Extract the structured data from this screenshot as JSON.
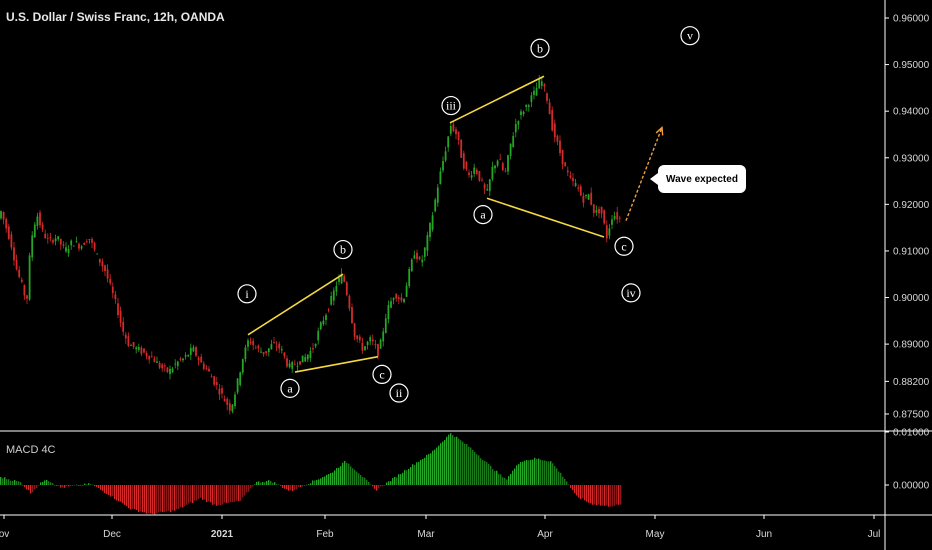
{
  "header": {
    "title": "U.S. Dollar / Swiss Franc, 12h, OANDA"
  },
  "macd": {
    "title": "MACD 4C"
  },
  "callout": {
    "text": "Wave expected"
  },
  "colors": {
    "up": "#26a626",
    "down": "#d42a2a",
    "line": "#f5d742",
    "arrow": "#f0a040",
    "grid": "#ffffff"
  },
  "chart_data": {
    "type": "candlestick",
    "price_axis": {
      "ticks": [
        "0.96000",
        "0.95000",
        "0.94000",
        "0.93000",
        "0.92000",
        "0.91000",
        "0.90000",
        "0.89000",
        "0.88200",
        "0.87500"
      ],
      "range": [
        0.871,
        0.969
      ]
    },
    "macd_axis": {
      "ticks": [
        "0.01000",
        "0.00000"
      ],
      "range": [
        -0.0065,
        0.0115
      ]
    },
    "time_axis": {
      "ticks": [
        "ov",
        "Dec",
        "2021",
        "Feb",
        "Mar",
        "Apr",
        "May",
        "Jun",
        "Jul"
      ]
    },
    "path_points": [
      [
        0,
        0.92
      ],
      [
        6,
        0.916
      ],
      [
        12,
        0.912
      ],
      [
        18,
        0.906
      ],
      [
        24,
        0.902
      ],
      [
        28,
        0.899
      ],
      [
        32,
        0.912
      ],
      [
        38,
        0.918
      ],
      [
        44,
        0.914
      ],
      [
        50,
        0.912
      ],
      [
        58,
        0.913
      ],
      [
        66,
        0.91
      ],
      [
        74,
        0.912
      ],
      [
        82,
        0.911
      ],
      [
        90,
        0.913
      ],
      [
        98,
        0.909
      ],
      [
        106,
        0.906
      ],
      [
        112,
        0.902
      ],
      [
        118,
        0.898
      ],
      [
        124,
        0.893
      ],
      [
        130,
        0.89
      ],
      [
        138,
        0.889
      ],
      [
        146,
        0.888
      ],
      [
        154,
        0.887
      ],
      [
        162,
        0.885
      ],
      [
        170,
        0.884
      ],
      [
        178,
        0.886
      ],
      [
        186,
        0.887
      ],
      [
        194,
        0.889
      ],
      [
        202,
        0.886
      ],
      [
        210,
        0.884
      ],
      [
        218,
        0.881
      ],
      [
        226,
        0.878
      ],
      [
        232,
        0.876
      ],
      [
        238,
        0.881
      ],
      [
        244,
        0.887
      ],
      [
        250,
        0.891
      ],
      [
        258,
        0.889
      ],
      [
        266,
        0.888
      ],
      [
        274,
        0.89
      ],
      [
        282,
        0.889
      ],
      [
        290,
        0.885
      ],
      [
        298,
        0.886
      ],
      [
        306,
        0.887
      ],
      [
        314,
        0.889
      ],
      [
        322,
        0.894
      ],
      [
        330,
        0.898
      ],
      [
        338,
        0.903
      ],
      [
        344,
        0.905
      ],
      [
        350,
        0.899
      ],
      [
        356,
        0.892
      ],
      [
        364,
        0.889
      ],
      [
        372,
        0.891
      ],
      [
        380,
        0.888
      ],
      [
        388,
        0.897
      ],
      [
        396,
        0.901
      ],
      [
        404,
        0.899
      ],
      [
        410,
        0.905
      ],
      [
        416,
        0.91
      ],
      [
        422,
        0.907
      ],
      [
        428,
        0.912
      ],
      [
        434,
        0.918
      ],
      [
        440,
        0.925
      ],
      [
        446,
        0.931
      ],
      [
        452,
        0.937
      ],
      [
        458,
        0.935
      ],
      [
        464,
        0.929
      ],
      [
        470,
        0.926
      ],
      [
        476,
        0.928
      ],
      [
        482,
        0.925
      ],
      [
        488,
        0.922
      ],
      [
        494,
        0.928
      ],
      [
        500,
        0.93
      ],
      [
        506,
        0.926
      ],
      [
        512,
        0.933
      ],
      [
        518,
        0.938
      ],
      [
        524,
        0.94
      ],
      [
        530,
        0.942
      ],
      [
        536,
        0.944
      ],
      [
        542,
        0.947
      ],
      [
        548,
        0.943
      ],
      [
        554,
        0.936
      ],
      [
        560,
        0.932
      ],
      [
        566,
        0.928
      ],
      [
        572,
        0.925
      ],
      [
        578,
        0.924
      ],
      [
        584,
        0.921
      ],
      [
        590,
        0.922
      ],
      [
        596,
        0.918
      ],
      [
        602,
        0.919
      ],
      [
        608,
        0.913
      ],
      [
        614,
        0.918
      ],
      [
        620,
        0.917
      ]
    ],
    "macd_path": [
      [
        0,
        0.0015
      ],
      [
        20,
        0.0005
      ],
      [
        30,
        -0.0015
      ],
      [
        45,
        0.0012
      ],
      [
        60,
        -0.0005
      ],
      [
        90,
        0.0002
      ],
      [
        110,
        -0.002
      ],
      [
        130,
        -0.0045
      ],
      [
        150,
        -0.0055
      ],
      [
        175,
        -0.0048
      ],
      [
        200,
        -0.0025
      ],
      [
        215,
        -0.0038
      ],
      [
        240,
        -0.003
      ],
      [
        255,
        0.0005
      ],
      [
        270,
        0.0008
      ],
      [
        290,
        -0.0012
      ],
      [
        310,
        0.0005
      ],
      [
        330,
        0.0022
      ],
      [
        345,
        0.0045
      ],
      [
        360,
        0.002
      ],
      [
        375,
        -0.001
      ],
      [
        395,
        0.0015
      ],
      [
        410,
        0.0035
      ],
      [
        430,
        0.006
      ],
      [
        450,
        0.0098
      ],
      [
        470,
        0.007
      ],
      [
        490,
        0.0035
      ],
      [
        505,
        0.001
      ],
      [
        520,
        0.0045
      ],
      [
        535,
        0.005
      ],
      [
        550,
        0.0045
      ],
      [
        565,
        0.001
      ],
      [
        575,
        -0.002
      ],
      [
        590,
        -0.0035
      ],
      [
        605,
        -0.004
      ],
      [
        620,
        -0.0038
      ]
    ],
    "wave_labels": [
      {
        "text": "i",
        "x": 247,
        "price": 0.9008
      },
      {
        "text": "a",
        "x": 290,
        "price": 0.8805
      },
      {
        "text": "b",
        "x": 343,
        "price": 0.9103
      },
      {
        "text": "c",
        "x": 382,
        "price": 0.8835
      },
      {
        "text": "ii",
        "x": 399,
        "price": 0.8795
      },
      {
        "text": "iii",
        "x": 451,
        "price": 0.9412
      },
      {
        "text": "a",
        "x": 483,
        "price": 0.9178
      },
      {
        "text": "b",
        "x": 540,
        "price": 0.9535
      },
      {
        "text": "c",
        "x": 624,
        "price": 0.911
      },
      {
        "text": "iv",
        "x": 631,
        "price": 0.901
      },
      {
        "text": "v",
        "x": 690,
        "price": 0.9562
      }
    ],
    "trendlines": [
      {
        "x1": 248,
        "p1": 0.892,
        "x2": 343,
        "p2": 0.905
      },
      {
        "x1": 295,
        "p1": 0.884,
        "x2": 378,
        "p2": 0.8873
      },
      {
        "x1": 450,
        "p1": 0.9375,
        "x2": 544,
        "p2": 0.9475
      },
      {
        "x1": 487,
        "p1": 0.9213,
        "x2": 604,
        "p2": 0.913
      }
    ],
    "projection": {
      "x1": 626,
      "p1": 0.9165,
      "x2": 662,
      "p2": 0.9365
    }
  }
}
